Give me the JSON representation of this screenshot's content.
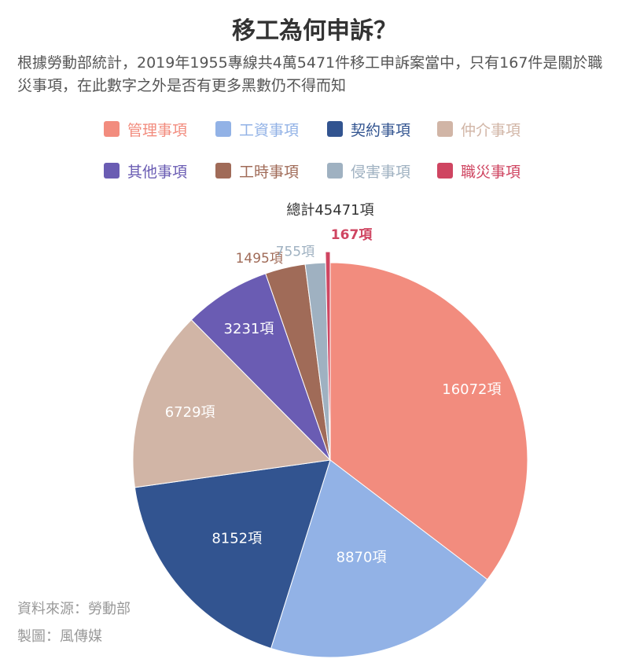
{
  "title": "移工為何申訴？",
  "subtitle": "根據勞動部統計，2019年1955專線共4萬5471件移工申訴案當中，只有167件是關於職災事項，在此數字之外是否有更多黑數仍不得而知",
  "footer": {
    "source": "資料來源：勞動部",
    "author": "製圖：風傳媒"
  },
  "chart_data": {
    "type": "pie",
    "title": "移工為何申訴？",
    "total_label": "總計45471項",
    "total": 45471,
    "unit": "項",
    "start_angle_deg": 0,
    "direction": "clockwise",
    "legend_position": "top",
    "slices": [
      {
        "name": "管理事項",
        "value": 16072,
        "label": "16072項",
        "color": "#f28c7e",
        "label_color": "#ffffff",
        "label_placement": "inside"
      },
      {
        "name": "工資事項",
        "value": 8870,
        "label": "8870項",
        "color": "#92b2e6",
        "label_color": "#ffffff",
        "label_placement": "inside"
      },
      {
        "name": "契約事項",
        "value": 8152,
        "label": "8152項",
        "color": "#325490",
        "label_color": "#ffffff",
        "label_placement": "inside"
      },
      {
        "name": "仲介事項",
        "value": 6729,
        "label": "6729項",
        "color": "#d1b5a6",
        "label_color": "#ffffff",
        "label_placement": "inside"
      },
      {
        "name": "其他事項",
        "value": 3231,
        "label": "3231項",
        "color": "#6a5cb3",
        "label_color": "#ffffff",
        "label_placement": "inside"
      },
      {
        "name": "工時事項",
        "value": 1495,
        "label": "1495項",
        "color": "#a06b58",
        "label_color": "#a06b58",
        "label_placement": "outside"
      },
      {
        "name": "侵害事項",
        "value": 755,
        "label": "755項",
        "color": "#9fb1c1",
        "label_color": "#9fb1c1",
        "label_placement": "outside"
      },
      {
        "name": "職災事項",
        "value": 167,
        "label": "167項",
        "color": "#cf4561",
        "label_color": "#cf4561",
        "label_placement": "outside"
      }
    ]
  }
}
